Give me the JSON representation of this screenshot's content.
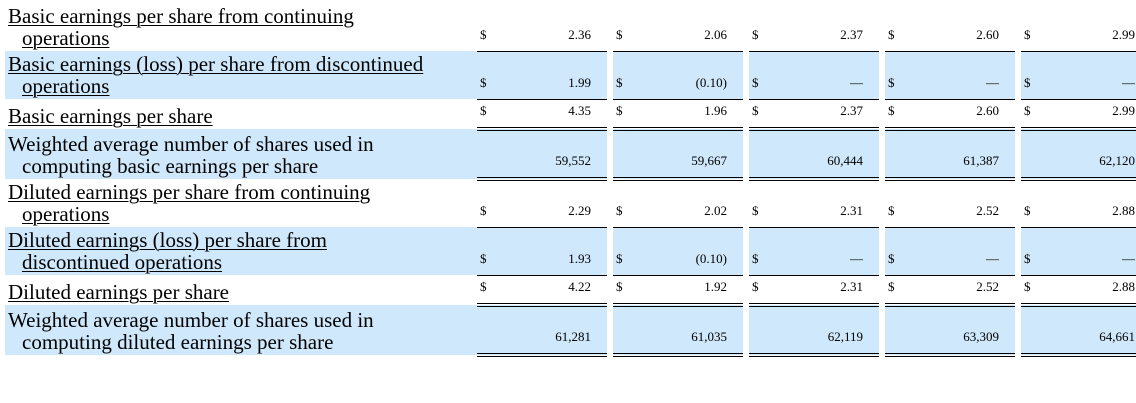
{
  "rows": [
    {
      "label": [
        "Basic earnings per share from continuing",
        "operations"
      ],
      "values": [
        "2.36",
        "2.06",
        "2.37",
        "2.60",
        "2.99"
      ],
      "currency": true,
      "underlined": true
    },
    {
      "label": [
        "Basic earnings (loss) per share from discontinued",
        "operations"
      ],
      "values": [
        "1.99",
        "(0.10)",
        "—",
        "—",
        "—"
      ],
      "currency": true,
      "underlined": true
    },
    {
      "label": [
        "Basic earnings per share"
      ],
      "values": [
        "4.35",
        "1.96",
        "2.37",
        "2.60",
        "2.99"
      ],
      "currency": true,
      "underlined": true
    },
    {
      "label": [
        "Weighted average number of shares used in",
        "computing basic earnings per share"
      ],
      "values": [
        "59,552",
        "59,667",
        "60,444",
        "61,387",
        "62,120"
      ],
      "currency": false,
      "underlined": false
    },
    {
      "label": [
        "Diluted earnings per share from continuing",
        "operations"
      ],
      "values": [
        "2.29",
        "2.02",
        "2.31",
        "2.52",
        "2.88"
      ],
      "currency": true,
      "underlined": true
    },
    {
      "label": [
        "Diluted earnings (loss) per share from",
        "discontinued operations"
      ],
      "values": [
        "1.93",
        "(0.10)",
        "—",
        "—",
        "—"
      ],
      "currency": true,
      "underlined": true
    },
    {
      "label": [
        "Diluted earnings per share"
      ],
      "values": [
        "4.22",
        "1.92",
        "2.31",
        "2.52",
        "2.88"
      ],
      "currency": true,
      "underlined": true
    },
    {
      "label": [
        "Weighted average number of shares used in",
        "computing diluted earnings per share"
      ],
      "values": [
        "61,281",
        "61,035",
        "62,119",
        "63,309",
        "64,661"
      ],
      "currency": false,
      "underlined": false
    }
  ],
  "currency_symbol": "$"
}
